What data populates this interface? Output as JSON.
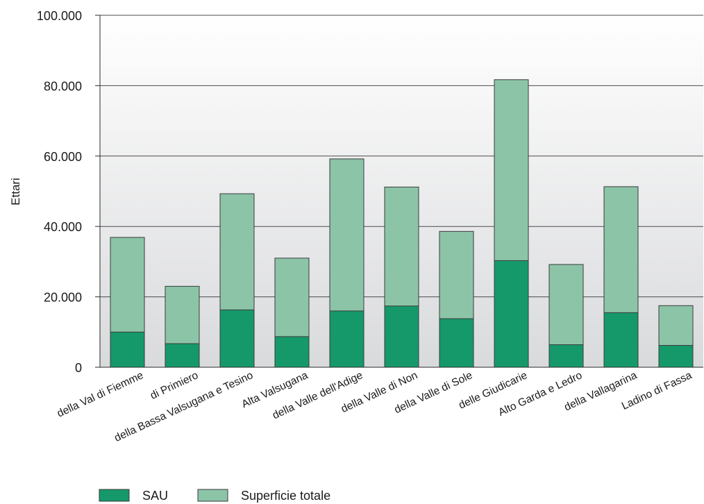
{
  "chart_data": {
    "type": "bar",
    "stacked": false,
    "overlapping": true,
    "title": "",
    "xlabel": "",
    "ylabel": "Ettari",
    "ylim": [
      0,
      100000
    ],
    "yticks": [
      0,
      20000,
      40000,
      60000,
      80000,
      100000
    ],
    "ytick_labels": [
      "0",
      "20.000",
      "40.000",
      "60.000",
      "80.000",
      "100.000"
    ],
    "grid": true,
    "legend_position": "bottom-left",
    "categories": [
      "della Val di Fiemme",
      "di Primiero",
      "della Bassa Valsugana e Tesino",
      "Alta Valsugana",
      "della Valle dell'Adige",
      "della Valle di Non",
      "della Valle di Sole",
      "delle Giudicarie",
      "Alto Garda e Ledro",
      "della Vallagarina",
      "Ladino di Fassa"
    ],
    "series": [
      {
        "name": "SAU",
        "color": "#15996b",
        "values": [
          10000,
          6700,
          16300,
          8700,
          16000,
          17400,
          13800,
          30300,
          6400,
          15500,
          6200
        ]
      },
      {
        "name": "Superficie totale",
        "color": "#8cc4a8",
        "values": [
          36900,
          23000,
          49300,
          31000,
          59200,
          51200,
          38600,
          81700,
          29200,
          51300,
          17500
        ]
      }
    ]
  }
}
